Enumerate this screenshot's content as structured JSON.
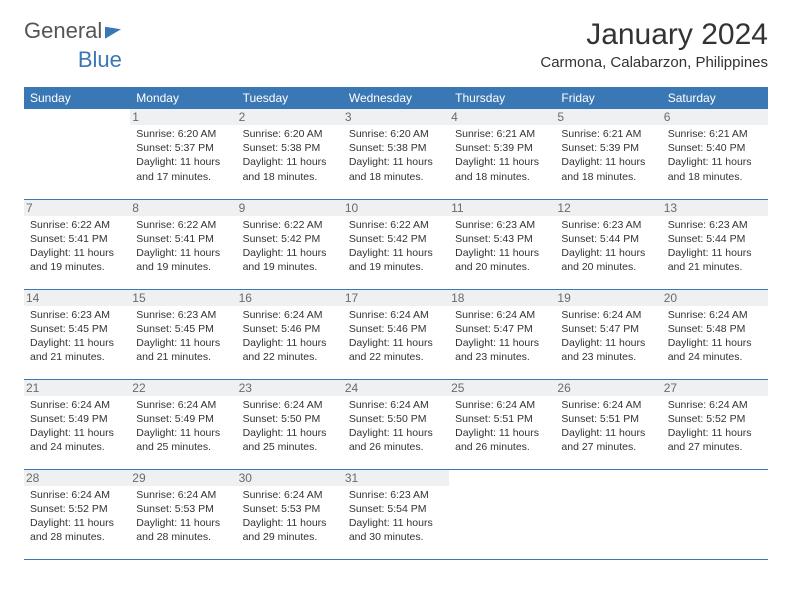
{
  "brand": {
    "part1": "General",
    "part2": "Blue"
  },
  "title": "January 2024",
  "location": "Carmona, Calabarzon, Philippines",
  "colors": {
    "header_bg": "#3a78b5",
    "header_text": "#ffffff",
    "daynum_bg": "#eef0f2",
    "daynum_text": "#6b6b6b",
    "rule": "#3a78b5",
    "body_text": "#333333",
    "background": "#ffffff"
  },
  "weekdays": [
    "Sunday",
    "Monday",
    "Tuesday",
    "Wednesday",
    "Thursday",
    "Friday",
    "Saturday"
  ],
  "weeks": [
    [
      null,
      {
        "d": "1",
        "sr": "6:20 AM",
        "ss": "5:37 PM",
        "dl": "11 hours and 17 minutes."
      },
      {
        "d": "2",
        "sr": "6:20 AM",
        "ss": "5:38 PM",
        "dl": "11 hours and 18 minutes."
      },
      {
        "d": "3",
        "sr": "6:20 AM",
        "ss": "5:38 PM",
        "dl": "11 hours and 18 minutes."
      },
      {
        "d": "4",
        "sr": "6:21 AM",
        "ss": "5:39 PM",
        "dl": "11 hours and 18 minutes."
      },
      {
        "d": "5",
        "sr": "6:21 AM",
        "ss": "5:39 PM",
        "dl": "11 hours and 18 minutes."
      },
      {
        "d": "6",
        "sr": "6:21 AM",
        "ss": "5:40 PM",
        "dl": "11 hours and 18 minutes."
      }
    ],
    [
      {
        "d": "7",
        "sr": "6:22 AM",
        "ss": "5:41 PM",
        "dl": "11 hours and 19 minutes."
      },
      {
        "d": "8",
        "sr": "6:22 AM",
        "ss": "5:41 PM",
        "dl": "11 hours and 19 minutes."
      },
      {
        "d": "9",
        "sr": "6:22 AM",
        "ss": "5:42 PM",
        "dl": "11 hours and 19 minutes."
      },
      {
        "d": "10",
        "sr": "6:22 AM",
        "ss": "5:42 PM",
        "dl": "11 hours and 19 minutes."
      },
      {
        "d": "11",
        "sr": "6:23 AM",
        "ss": "5:43 PM",
        "dl": "11 hours and 20 minutes."
      },
      {
        "d": "12",
        "sr": "6:23 AM",
        "ss": "5:44 PM",
        "dl": "11 hours and 20 minutes."
      },
      {
        "d": "13",
        "sr": "6:23 AM",
        "ss": "5:44 PM",
        "dl": "11 hours and 21 minutes."
      }
    ],
    [
      {
        "d": "14",
        "sr": "6:23 AM",
        "ss": "5:45 PM",
        "dl": "11 hours and 21 minutes."
      },
      {
        "d": "15",
        "sr": "6:23 AM",
        "ss": "5:45 PM",
        "dl": "11 hours and 21 minutes."
      },
      {
        "d": "16",
        "sr": "6:24 AM",
        "ss": "5:46 PM",
        "dl": "11 hours and 22 minutes."
      },
      {
        "d": "17",
        "sr": "6:24 AM",
        "ss": "5:46 PM",
        "dl": "11 hours and 22 minutes."
      },
      {
        "d": "18",
        "sr": "6:24 AM",
        "ss": "5:47 PM",
        "dl": "11 hours and 23 minutes."
      },
      {
        "d": "19",
        "sr": "6:24 AM",
        "ss": "5:47 PM",
        "dl": "11 hours and 23 minutes."
      },
      {
        "d": "20",
        "sr": "6:24 AM",
        "ss": "5:48 PM",
        "dl": "11 hours and 24 minutes."
      }
    ],
    [
      {
        "d": "21",
        "sr": "6:24 AM",
        "ss": "5:49 PM",
        "dl": "11 hours and 24 minutes."
      },
      {
        "d": "22",
        "sr": "6:24 AM",
        "ss": "5:49 PM",
        "dl": "11 hours and 25 minutes."
      },
      {
        "d": "23",
        "sr": "6:24 AM",
        "ss": "5:50 PM",
        "dl": "11 hours and 25 minutes."
      },
      {
        "d": "24",
        "sr": "6:24 AM",
        "ss": "5:50 PM",
        "dl": "11 hours and 26 minutes."
      },
      {
        "d": "25",
        "sr": "6:24 AM",
        "ss": "5:51 PM",
        "dl": "11 hours and 26 minutes."
      },
      {
        "d": "26",
        "sr": "6:24 AM",
        "ss": "5:51 PM",
        "dl": "11 hours and 27 minutes."
      },
      {
        "d": "27",
        "sr": "6:24 AM",
        "ss": "5:52 PM",
        "dl": "11 hours and 27 minutes."
      }
    ],
    [
      {
        "d": "28",
        "sr": "6:24 AM",
        "ss": "5:52 PM",
        "dl": "11 hours and 28 minutes."
      },
      {
        "d": "29",
        "sr": "6:24 AM",
        "ss": "5:53 PM",
        "dl": "11 hours and 28 minutes."
      },
      {
        "d": "30",
        "sr": "6:24 AM",
        "ss": "5:53 PM",
        "dl": "11 hours and 29 minutes."
      },
      {
        "d": "31",
        "sr": "6:23 AM",
        "ss": "5:54 PM",
        "dl": "11 hours and 30 minutes."
      },
      null,
      null,
      null
    ]
  ],
  "labels": {
    "sunrise": "Sunrise:",
    "sunset": "Sunset:",
    "daylight": "Daylight:"
  }
}
